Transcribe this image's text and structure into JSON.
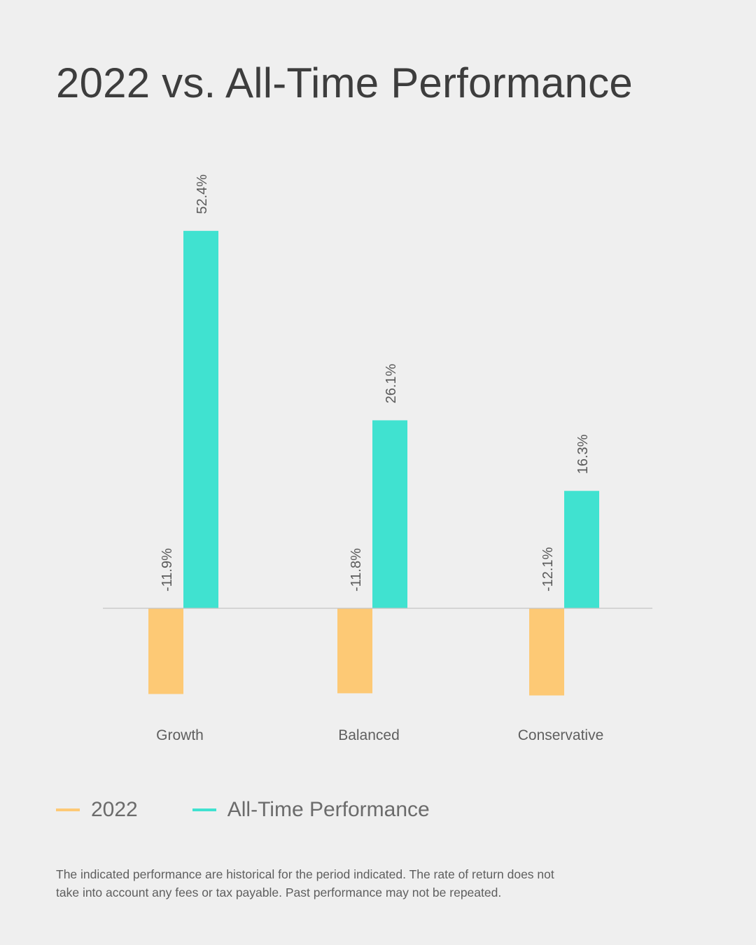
{
  "title": "2022 vs. All-Time Performance",
  "footnote": "The indicated performance are historical for the period indicated. The rate of return does not take into account any fees or tax payable. Past performance may not be repeated.",
  "colors": {
    "series_2022": "#fdc975",
    "series_alltime": "#40e2d0",
    "text": "#3d3d3d",
    "muted": "#6b6b6b",
    "axis": "#c4c4c4"
  },
  "chart_data": {
    "type": "bar",
    "title": "2022 vs. All-Time Performance",
    "categories": [
      "Growth",
      "Balanced",
      "Conservative"
    ],
    "series": [
      {
        "name": "2022",
        "values": [
          -11.9,
          -11.8,
          -12.1
        ],
        "labels": [
          "-11.9%",
          "-11.8%",
          "-12.1%"
        ],
        "color": "#fdc975"
      },
      {
        "name": "All-Time Performance",
        "values": [
          52.4,
          26.1,
          16.3
        ],
        "labels": [
          "52.4%",
          "26.1%",
          "16.3%"
        ],
        "color": "#40e2d0"
      }
    ],
    "unit": "%",
    "xlabel": "",
    "ylabel": "",
    "grid": false,
    "legend_position": "bottom-left"
  }
}
